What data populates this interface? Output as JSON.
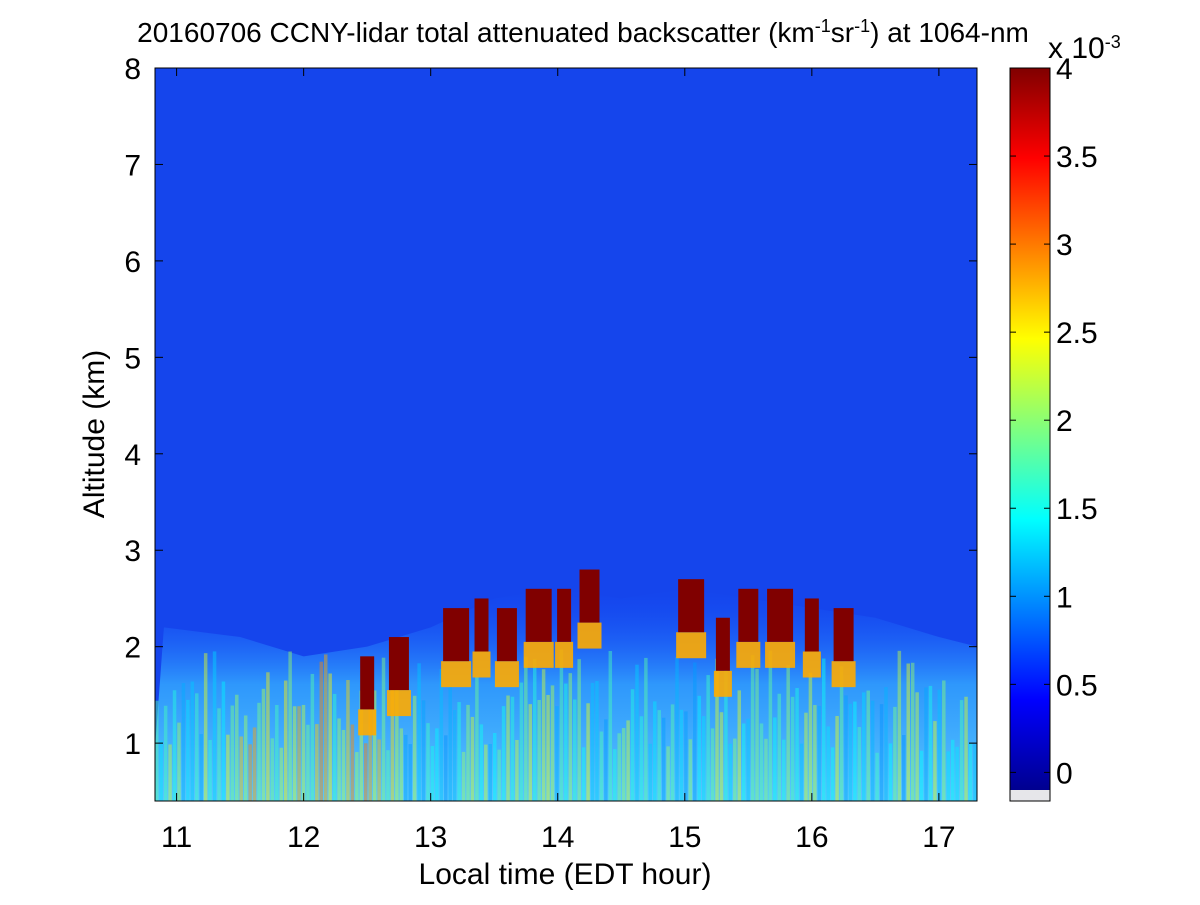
{
  "chart_data": {
    "type": "heatmap",
    "title": {
      "prefix": "20160706 CCNY-lidar total attenuated backscatter (km",
      "sup1": "-1",
      "mid": "sr",
      "sup2": "-1",
      "suffix": ") at 1064-nm"
    },
    "xlabel": "Local time (EDT hour)",
    "ylabel": "Altitude (km)",
    "xlim": [
      10.83,
      17.3
    ],
    "ylim": [
      0.4,
      8
    ],
    "x_ticks": [
      11,
      12,
      13,
      14,
      15,
      16,
      17
    ],
    "y_ticks": [
      1,
      2,
      3,
      4,
      5,
      6,
      7,
      8
    ],
    "colorbar": {
      "colormap": "jet",
      "range": [
        -0.1,
        4
      ],
      "ticks": [
        0,
        0.5,
        1,
        1.5,
        2,
        2.5,
        3,
        3.5,
        4
      ],
      "tick_labels": [
        "0",
        "0.5",
        "1",
        "1.5",
        "2",
        "2.5",
        "3",
        "3.5",
        "4"
      ],
      "exponent_base": "x 10",
      "exponent_power": "-3"
    },
    "description_values": {
      "background_free_troposphere": 0.25,
      "boundary_layer_aerosol": 1.3,
      "cloud_top_saturated": 4
    },
    "boundary_layer_top_km": [
      {
        "t": 10.9,
        "h": 2.2
      },
      {
        "t": 11.5,
        "h": 2.1
      },
      {
        "t": 12.0,
        "h": 1.9
      },
      {
        "t": 12.5,
        "h": 2.0
      },
      {
        "t": 13.0,
        "h": 2.2
      },
      {
        "t": 13.5,
        "h": 2.5
      },
      {
        "t": 14.0,
        "h": 2.6
      },
      {
        "t": 14.5,
        "h": 2.5
      },
      {
        "t": 15.0,
        "h": 2.6
      },
      {
        "t": 15.5,
        "h": 2.5
      },
      {
        "t": 16.0,
        "h": 2.4
      },
      {
        "t": 16.5,
        "h": 2.3
      },
      {
        "t": 17.0,
        "h": 2.1
      },
      {
        "t": 17.3,
        "h": 2.0
      }
    ],
    "cloud_columns": [
      {
        "t": 12.5,
        "h": 1.9
      },
      {
        "t": 12.75,
        "h": 2.1
      },
      {
        "t": 13.2,
        "h": 2.4
      },
      {
        "t": 13.4,
        "h": 2.5
      },
      {
        "t": 13.6,
        "h": 2.4
      },
      {
        "t": 13.85,
        "h": 2.6
      },
      {
        "t": 14.05,
        "h": 2.6
      },
      {
        "t": 14.25,
        "h": 2.8
      },
      {
        "t": 15.05,
        "h": 2.7
      },
      {
        "t": 15.3,
        "h": 2.3
      },
      {
        "t": 15.5,
        "h": 2.6
      },
      {
        "t": 15.75,
        "h": 2.6
      },
      {
        "t": 16.0,
        "h": 2.5
      },
      {
        "t": 16.25,
        "h": 2.4
      }
    ]
  }
}
